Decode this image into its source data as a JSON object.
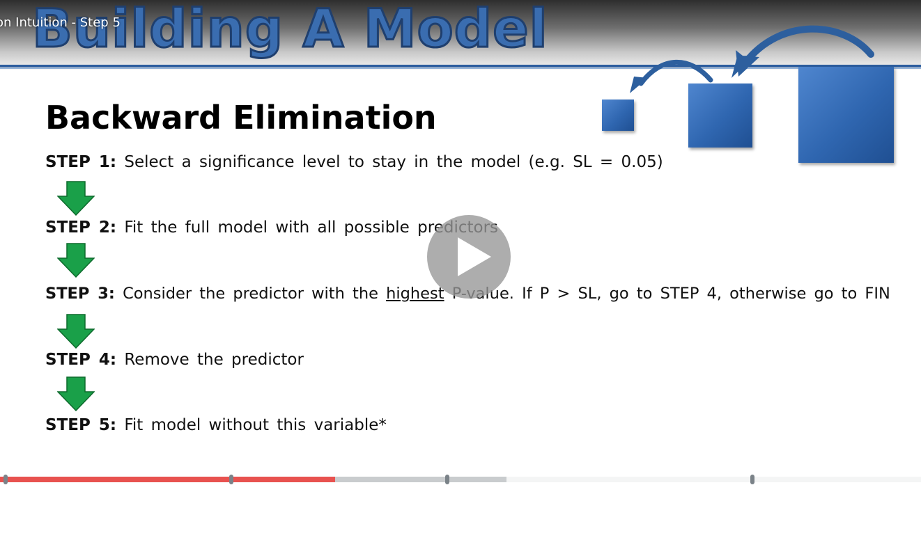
{
  "video": {
    "overlay_title": "on Intuition - Step 5",
    "banner_title": "Building A Model",
    "progress": {
      "played_fraction": 0.364,
      "buffered_fraction": 0.55,
      "chapter_fractions": [
        0.004,
        0.249,
        0.483,
        0.815
      ]
    }
  },
  "slide": {
    "heading": "Backward Elimination",
    "steps": [
      {
        "label": "STEP 1:",
        "text": "Select a significance level to stay in the model (e.g. SL = 0.05)"
      },
      {
        "label": "STEP 2:",
        "text": "Fit the full model with all possible predictors"
      },
      {
        "label": "STEP 3:",
        "pre": "Consider the predictor with the",
        "underlined": "highest",
        "post": "P-value. If P > SL, go to STEP 4, otherwise go to FIN"
      },
      {
        "label": "STEP 4:",
        "text": "Remove the predictor"
      },
      {
        "label": "STEP 5:",
        "text": "Fit model without this variable*"
      }
    ]
  },
  "colors": {
    "accent_blue": "#2f66b0",
    "arrow_green": "#1aa049",
    "progress_red": "#e8524f"
  }
}
